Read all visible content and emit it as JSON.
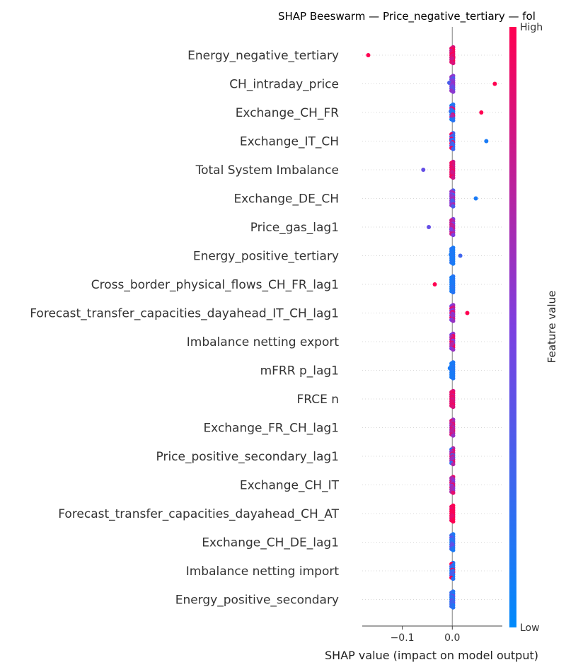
{
  "chart_data": {
    "type": "scatter",
    "subtype": "shap-beeswarm",
    "title": "SHAP Beeswarm — Price_negative_tertiary — fol",
    "xlabel": "SHAP value (impact on model output)",
    "xlim": [
      -0.18,
      0.1
    ],
    "x_ticks": [
      {
        "value": -0.1,
        "label": "−0.1"
      },
      {
        "value": 0.0,
        "label": "0.0"
      }
    ],
    "colorbar": {
      "label": "Feature value",
      "high_label": "High",
      "low_label": "Low",
      "low_color": "#008afb",
      "mid_color": "#7d3fe0",
      "high_color": "#ff0051"
    },
    "features": [
      {
        "name": "Energy_negative_tertiary",
        "points": [
          [
            -0.168,
            1.0
          ],
          [
            0.0,
            1.0
          ],
          [
            0.001,
            0.9
          ],
          [
            -0.001,
            0.85
          ],
          [
            0.002,
            0.95
          ],
          [
            0.0,
            0.8
          ]
        ]
      },
      {
        "name": "CH_intraday_price",
        "points": [
          [
            0.085,
            1.0
          ],
          [
            -0.006,
            0.3
          ],
          [
            0.0,
            0.6
          ],
          [
            0.0,
            0.55
          ],
          [
            0.0,
            0.5
          ],
          [
            0.001,
            0.4
          ]
        ]
      },
      {
        "name": "Exchange_CH_FR",
        "points": [
          [
            0.058,
            1.0
          ],
          [
            -0.003,
            0.2
          ],
          [
            0.0,
            0.1
          ],
          [
            0.0,
            0.15
          ],
          [
            0.001,
            0.9
          ],
          [
            0.0,
            0.7
          ]
        ]
      },
      {
        "name": "Exchange_IT_CH",
        "points": [
          [
            0.068,
            0.1
          ],
          [
            -0.002,
            0.3
          ],
          [
            0.0,
            0.2
          ],
          [
            0.001,
            0.95
          ],
          [
            0.0,
            0.25
          ]
        ]
      },
      {
        "name": "Total System Imbalance",
        "points": [
          [
            -0.058,
            0.4
          ],
          [
            0.0,
            0.9
          ],
          [
            0.0,
            0.85
          ],
          [
            0.001,
            0.95
          ],
          [
            0.0,
            0.8
          ]
        ]
      },
      {
        "name": "Exchange_DE_CH",
        "points": [
          [
            0.047,
            0.1
          ],
          [
            0.0,
            0.5
          ],
          [
            0.0,
            0.7
          ],
          [
            0.001,
            0.6
          ],
          [
            0.0,
            0.3
          ]
        ]
      },
      {
        "name": "Price_gas_lag1",
        "points": [
          [
            -0.047,
            0.4
          ],
          [
            0.0,
            0.75
          ],
          [
            0.0,
            0.7
          ],
          [
            0.001,
            0.8
          ],
          [
            -0.002,
            0.5
          ]
        ]
      },
      {
        "name": "Energy_positive_tertiary",
        "points": [
          [
            0.016,
            0.25
          ],
          [
            -0.003,
            0.1
          ],
          [
            0.0,
            0.1
          ],
          [
            0.001,
            0.15
          ],
          [
            0.0,
            0.1
          ]
        ]
      },
      {
        "name": "Cross_border_physical_flows_CH_FR_lag1",
        "points": [
          [
            -0.035,
            1.0
          ],
          [
            0.0,
            0.1
          ],
          [
            0.0,
            0.12
          ],
          [
            0.001,
            0.1
          ],
          [
            0.0,
            0.15
          ]
        ]
      },
      {
        "name": "Forecast_transfer_capacities_dayahead_IT_CH_lag1",
        "points": [
          [
            0.03,
            1.0
          ],
          [
            0.0,
            0.9
          ],
          [
            -0.001,
            0.8
          ],
          [
            0.001,
            0.5
          ],
          [
            0.0,
            0.6
          ]
        ]
      },
      {
        "name": "Imbalance netting export",
        "points": [
          [
            0.0,
            0.95
          ],
          [
            0.001,
            0.5
          ],
          [
            0.0,
            0.6
          ],
          [
            -0.001,
            0.9
          ],
          [
            0.0,
            0.7
          ]
        ]
      },
      {
        "name": "mFRR p_lag1",
        "points": [
          [
            -0.005,
            0.1
          ],
          [
            0.0,
            0.1
          ],
          [
            0.0,
            0.12
          ],
          [
            0.001,
            0.15
          ],
          [
            0.0,
            0.1
          ]
        ]
      },
      {
        "name": "FRCE n",
        "points": [
          [
            0.0,
            0.95
          ],
          [
            0.0,
            0.9
          ],
          [
            0.001,
            0.85
          ],
          [
            0.0,
            0.8
          ],
          [
            -0.001,
            0.9
          ]
        ]
      },
      {
        "name": "Exchange_FR_CH_lag1",
        "points": [
          [
            0.0,
            0.7
          ],
          [
            0.0,
            0.85
          ],
          [
            0.001,
            0.6
          ],
          [
            -0.001,
            0.9
          ],
          [
            0.0,
            0.75
          ]
        ]
      },
      {
        "name": "Price_positive_secondary_lag1",
        "points": [
          [
            0.0,
            0.9
          ],
          [
            0.0,
            0.2
          ],
          [
            0.001,
            0.7
          ],
          [
            -0.001,
            0.8
          ],
          [
            0.0,
            0.6
          ]
        ]
      },
      {
        "name": "Exchange_CH_IT",
        "points": [
          [
            0.0,
            0.6
          ],
          [
            0.0,
            0.7
          ],
          [
            0.001,
            0.9
          ],
          [
            -0.001,
            0.5
          ],
          [
            0.0,
            0.65
          ]
        ]
      },
      {
        "name": "Forecast_transfer_capacities_dayahead_CH_AT",
        "points": [
          [
            0.0,
            1.0
          ],
          [
            0.0,
            0.95
          ],
          [
            0.001,
            1.0
          ],
          [
            -0.001,
            0.95
          ],
          [
            0.0,
            0.9
          ]
        ]
      },
      {
        "name": "Exchange_CH_DE_lag1",
        "points": [
          [
            0.0,
            0.15
          ],
          [
            0.0,
            0.2
          ],
          [
            0.001,
            0.1
          ],
          [
            -0.001,
            0.25
          ],
          [
            0.0,
            0.4
          ]
        ]
      },
      {
        "name": "Imbalance netting import",
        "points": [
          [
            0.0,
            0.1
          ],
          [
            0.0,
            1.0
          ],
          [
            0.001,
            0.15
          ],
          [
            -0.001,
            0.2
          ],
          [
            0.0,
            0.3
          ]
        ]
      },
      {
        "name": "Energy_positive_secondary",
        "points": [
          [
            0.0,
            0.1
          ],
          [
            0.0,
            0.2
          ],
          [
            0.001,
            0.15
          ],
          [
            -0.001,
            0.4
          ],
          [
            0.0,
            0.25
          ]
        ]
      }
    ]
  }
}
